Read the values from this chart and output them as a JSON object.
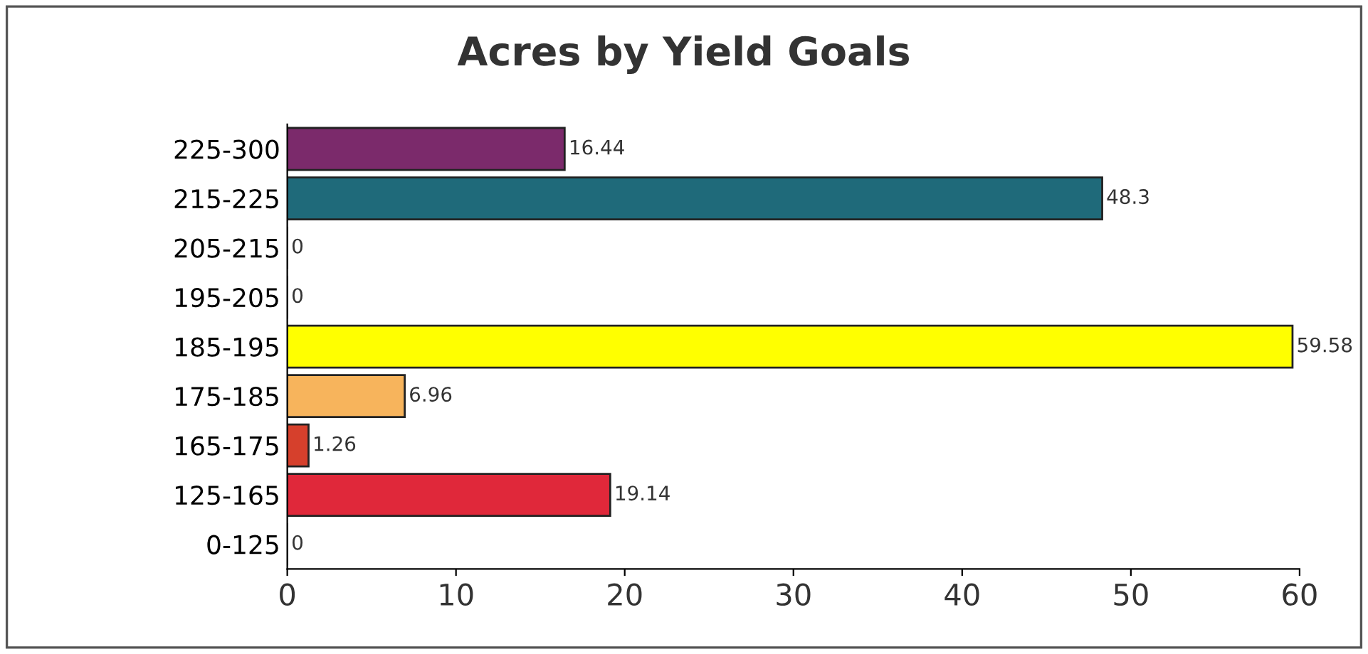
{
  "chart_data": {
    "type": "bar",
    "orientation": "horizontal",
    "title": "Acres by Yield Goals",
    "categories": [
      "225-300",
      "215-225",
      "205-215",
      "195-205",
      "185-195",
      "175-185",
      "165-175",
      "125-165",
      "0-125"
    ],
    "values": [
      16.44,
      48.3,
      0,
      0,
      59.58,
      6.96,
      1.26,
      19.14,
      0
    ],
    "colors": [
      "#7b2a6b",
      "#1f6a7a",
      "#222222",
      "#222222",
      "#ffff00",
      "#f7b45c",
      "#d6402c",
      "#e0283a",
      "#222222"
    ],
    "xlim": [
      0,
      60
    ],
    "xticks": [
      0,
      10,
      20,
      30,
      40,
      50,
      60
    ],
    "data_labels": true
  }
}
